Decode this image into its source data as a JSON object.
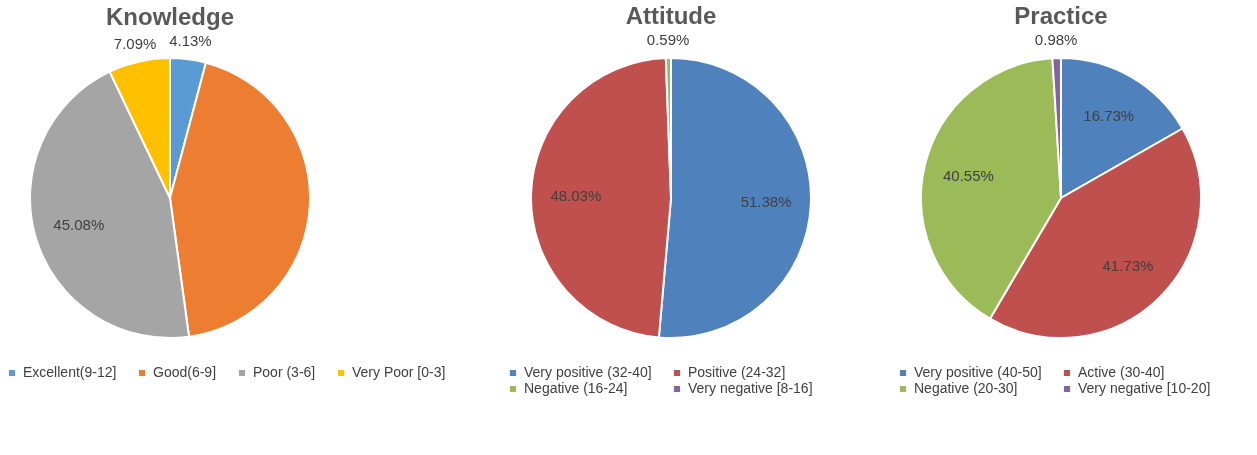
{
  "chart_data": [
    {
      "type": "pie",
      "title": "Knowledge",
      "categories": [
        "Excellent(9-12]",
        "Good(6-9]",
        "Poor (3-6]",
        "Very Poor [0-3]"
      ],
      "values": [
        4.13,
        43.7,
        45.08,
        7.09
      ],
      "colors": [
        "#5b9bd5",
        "#ed7d31",
        "#a5a5a5",
        "#ffc000"
      ],
      "value_labels": [
        "4.13%",
        null,
        "45.08%",
        "7.09%"
      ],
      "legend": "bottom"
    },
    {
      "type": "pie",
      "title": "Attitude",
      "categories": [
        "Very positive (32-40]",
        "Positive (24-32]",
        "Negative (16-24]",
        "Very negative [8-16]"
      ],
      "values": [
        51.38,
        48.03,
        0.59,
        0
      ],
      "colors": [
        "#4f81bd",
        "#c0504d",
        "#9bbb59",
        "#8064a2"
      ],
      "value_labels": [
        "51.38%",
        "48.03%",
        "0.59%",
        null
      ],
      "legend": "bottom"
    },
    {
      "type": "pie",
      "title": "Practice",
      "categories": [
        "Very positive (40-50]",
        "Active (30-40]",
        "Negative (20-30]",
        "Very negative [10-20]"
      ],
      "values": [
        16.73,
        41.73,
        40.55,
        0.98
      ],
      "colors": [
        "#4f81bd",
        "#c0504d",
        "#9bbb59",
        "#8064a2"
      ],
      "value_labels": [
        "16.73%",
        "41.73%",
        "40.55%",
        "0.98%"
      ],
      "legend": "bottom"
    }
  ]
}
